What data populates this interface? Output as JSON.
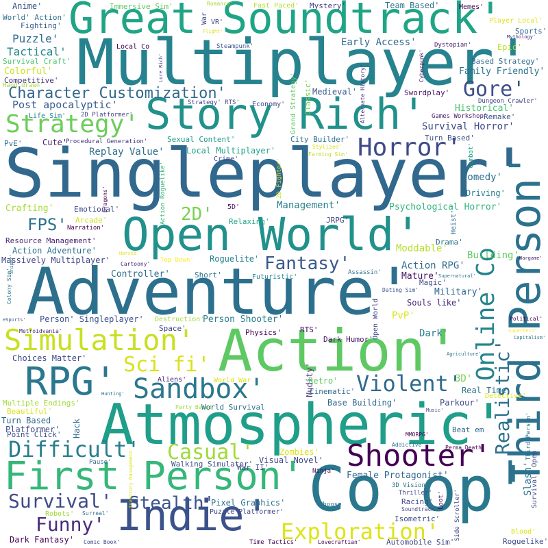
{
  "words": [
    {
      "text": "Singleplayer'",
      "color": "#31688e"
    },
    {
      "text": "Multiplayer'",
      "color": "#26828e"
    },
    {
      "text": "Adventure'",
      "color": "#2d708e"
    },
    {
      "text": "Action'",
      "color": "#5ec962"
    },
    {
      "text": "Atmospheric'",
      "color": "#1f9e89"
    },
    {
      "text": "Great Soundtrack'",
      "color": "#20a486"
    },
    {
      "text": "Co op'",
      "color": "#2a788e"
    },
    {
      "text": "Open World'",
      "color": "#21918c"
    },
    {
      "text": "Story Rich'",
      "color": "#21918c"
    },
    {
      "text": "First Person'",
      "color": "#35b779"
    },
    {
      "text": "Third Person'",
      "color": "#2c728e"
    },
    {
      "text": "Indie'",
      "color": "#3b528b"
    },
    {
      "text": "RPG'",
      "color": "#2a788e"
    },
    {
      "text": "Simulation'",
      "color": "#c8e020"
    },
    {
      "text": "Shooter'",
      "color": "#440154"
    },
    {
      "text": "Sandbox'",
      "color": "#2a788e"
    },
    {
      "text": "Strategy'",
      "color": "#6ccd5a"
    },
    {
      "text": "Horror'",
      "color": "#3e4989"
    },
    {
      "text": "Exploration'",
      "color": "#dde318"
    },
    {
      "text": "Difficult'",
      "color": "#287d8e"
    },
    {
      "text": "Online Co",
      "color": "#25848e"
    },
    {
      "text": "Violent'",
      "color": "#306a8e"
    },
    {
      "text": "Sci fi'",
      "color": "#d8e219"
    },
    {
      "text": "Casual'",
      "color": "#a0da39"
    },
    {
      "text": "Survival'",
      "color": "#3e4a89"
    },
    {
      "text": "Funny'",
      "color": "#472d7b"
    },
    {
      "text": "Stealth'",
      "color": "#3a548c"
    },
    {
      "text": "Fantasy'",
      "color": "#38598c"
    },
    {
      "text": "Gore'",
      "color": "#3d4e8a"
    },
    {
      "text": "Character Customization'",
      "color": "#31688e"
    },
    {
      "text": "FPS'",
      "color": "#2c728e"
    },
    {
      "text": "2D'",
      "color": "#7ad151"
    },
    {
      "text": "Realistic'",
      "color": "#2c718e"
    },
    {
      "text": "Anime'",
      "color": "#3b528b"
    },
    {
      "text": "Immersive Sim'",
      "color": "#5ec962"
    },
    {
      "text": "Romance'",
      "color": "#a5db36"
    },
    {
      "text": "Fast Paced'",
      "color": "#b8de29"
    },
    {
      "text": "Mystery'",
      "color": "#443983"
    },
    {
      "text": "Team Based'",
      "color": "#2c728e"
    },
    {
      "text": "Memes'",
      "color": "#440154"
    },
    {
      "text": "World' Action'",
      "color": "#2c728e"
    },
    {
      "text": "Fighting'",
      "color": "#375b8d"
    },
    {
      "text": "Puzzle'",
      "color": "#2f6c8e"
    },
    {
      "text": "Tactical'",
      "color": "#24868e"
    },
    {
      "text": "Survival Craft'",
      "color": "#4ac16d"
    },
    {
      "text": "Colorful'",
      "color": "#d0e11c"
    },
    {
      "text": "Competitive'",
      "color": "#46327e"
    },
    {
      "text": "Hand drawn'",
      "color": "#a8db34"
    },
    {
      "text": "Post apocalyptic'",
      "color": "#375b8d"
    },
    {
      "text": "Life Sim'",
      "color": "#25838e"
    },
    {
      "text": "2D Platformer'",
      "color": "#3f4889"
    },
    {
      "text": "PvE'",
      "color": "#2e6e8e"
    },
    {
      "text": "Cute'",
      "color": "#482374"
    },
    {
      "text": "Procedural Generation'",
      "color": "#453581"
    },
    {
      "text": "Crafting'",
      "color": "#a8db34"
    },
    {
      "text": "Emotional'",
      "color": "#3e4c8a"
    },
    {
      "text": "Arcade'",
      "color": "#cae11f"
    },
    {
      "text": "Narration'",
      "color": "#440154"
    },
    {
      "text": "Resource Management'",
      "color": "#482677"
    },
    {
      "text": "Action Adventure'",
      "color": "#2c728e"
    },
    {
      "text": "Massively Multiplayer'",
      "color": "#404688"
    },
    {
      "text": "Controller'",
      "color": "#2e6e8e"
    },
    {
      "text": "Short'",
      "color": "#2d718e"
    },
    {
      "text": "Roguelite'",
      "color": "#26818e"
    },
    {
      "text": "Top Down'",
      "color": "#fde725"
    },
    {
      "text": "Cartoony'",
      "color": "#472c7a"
    },
    {
      "text": "Futuristic'",
      "color": "#25848e"
    },
    {
      "text": "Replay Value'",
      "color": "#2e6e8e"
    },
    {
      "text": "Sexual Content'",
      "color": "#1f9a8a"
    },
    {
      "text": "Local Multiplayer'",
      "color": "#20a386"
    },
    {
      "text": "Crime'",
      "color": "#3e4989"
    },
    {
      "text": "City Builder'",
      "color": "#2e6d8e"
    },
    {
      "text": "Farming Sim'",
      "color": "#c0df25"
    },
    {
      "text": "Stylized'",
      "color": "#dde318"
    },
    {
      "text": "Relaxing'",
      "color": "#22a785"
    },
    {
      "text": "5D'",
      "color": "#481467"
    },
    {
      "text": "JRPG'",
      "color": "#424086"
    },
    {
      "text": "Management'",
      "color": "#277f8e"
    },
    {
      "text": "Psychological Horror'",
      "color": "#2fb47c"
    },
    {
      "text": "Driving'",
      "color": "#277f8e"
    },
    {
      "text": "Comedy'",
      "color": "#2e6e8e"
    },
    {
      "text": "Turn Based'",
      "color": "#3b528b"
    },
    {
      "text": "Dungeon Crawler'",
      "color": "#404688"
    },
    {
      "text": "Remake'",
      "color": "#3b528b"
    },
    {
      "text": "Survival Horror'",
      "color": "#3e4989"
    },
    {
      "text": "Games Workshop'",
      "color": "#481769"
    },
    {
      "text": "Historical'",
      "color": "#4ac16d"
    },
    {
      "text": "Family Friendly'",
      "color": "#2c728e"
    },
    {
      "text": "Based Strategy'",
      "color": "#2f6b8e"
    },
    {
      "text": "Epic'",
      "color": "#b5de2b"
    },
    {
      "text": "Dystopian'",
      "color": "#481b6d"
    },
    {
      "text": "Sports'",
      "color": "#31688e"
    },
    {
      "text": "Player Local'",
      "color": "#dde318"
    },
    {
      "text": "Mythology'",
      "color": "#482878"
    },
    {
      "text": "Swordplay'",
      "color": "#481467"
    },
    {
      "text": "Medieval'",
      "color": "#38598c"
    },
    {
      "text": "Early Access'",
      "color": "#31688e"
    },
    {
      "text": "Local Co",
      "color": "#440154"
    },
    {
      "text": "Steampunk'",
      "color": "#3b528b"
    },
    {
      "text": "Strategy' RTS'",
      "color": "#3e4989"
    },
    {
      "text": "Economy'",
      "color": "#3e4989"
    },
    {
      "text": "VR'",
      "color": "#3e4989"
    },
    {
      "text": "War",
      "color": "#3e4989"
    },
    {
      "text": "Flight'",
      "color": "#dde318"
    },
    {
      "text": "Lore Rich'",
      "color": "#443983"
    },
    {
      "text": "Grand Strategy'",
      "color": "#5ec962"
    },
    {
      "text": "Classic'",
      "color": "#7ad151"
    },
    {
      "text": "Alternate History'",
      "color": "#472d7b"
    },
    {
      "text": "Cyberpunk'",
      "color": "#471164"
    },
    {
      "text": "2D Fighter'",
      "color": "#c8e020"
    },
    {
      "text": "Dragons'",
      "color": "#440154"
    },
    {
      "text": "Action Roguelike'",
      "color": "#35b779"
    },
    {
      "text": "Combat'",
      "color": "#20a486"
    },
    {
      "text": "Heist'",
      "color": "#2e6e8e"
    },
    {
      "text": "Drama'",
      "color": "#2c728e"
    },
    {
      "text": "Horses'",
      "color": "#dde318"
    },
    {
      "text": "Building'",
      "color": "#5ec962"
    },
    {
      "text": "Action RPG'",
      "color": "#2f6b8e"
    },
    {
      "text": "Mature'",
      "color": "#481467"
    },
    {
      "text": "Magic'",
      "color": "#3e4989"
    },
    {
      "text": "Wargame'",
      "color": "#482374"
    },
    {
      "text": "Military'",
      "color": "#31688e"
    },
    {
      "text": "Moddable'",
      "color": "#b5de2b"
    },
    {
      "text": "Assassin'",
      "color": "#2c728e"
    },
    {
      "text": "Supernatural'",
      "color": "#2c728e"
    },
    {
      "text": "Dating Sim'",
      "color": "#3b528b"
    },
    {
      "text": "Open World",
      "color": "#3e4989"
    },
    {
      "text": "Souls like'",
      "color": "#482374"
    },
    {
      "text": "Dark'",
      "color": "#287d8e"
    },
    {
      "text": "PvP'",
      "color": "#dde318"
    },
    {
      "text": "Political'",
      "color": "#440154"
    },
    {
      "text": "Superhero'",
      "color": "#fde725"
    },
    {
      "text": "Capitalism'",
      "color": "#2c728e"
    },
    {
      "text": "Agriculture'",
      "color": "#2c728e"
    },
    {
      "text": "Person' Singleplayer'",
      "color": "#3b528b"
    },
    {
      "text": "Destruction'",
      "color": "#a0da39"
    },
    {
      "text": "Space'",
      "color": "#404688"
    },
    {
      "text": "Person Shooter'",
      "color": "#287d8e"
    },
    {
      "text": "Physics'",
      "color": "#440154"
    },
    {
      "text": "RTS'",
      "color": "#440154"
    },
    {
      "text": "Dark Humor'",
      "color": "#481467"
    },
    {
      "text": "Metroidvania'",
      "color": "#472d7b"
    },
    {
      "text": "Colony Sim'",
      "color": "#2c728e"
    },
    {
      "text": "Sniper'",
      "color": "#2c728e"
    },
    {
      "text": "eSports'",
      "color": "#3b528b"
    },
    {
      "text": "Choices Matter'",
      "color": "#3e4989"
    },
    {
      "text": "Aliens'",
      "color": "#482374"
    },
    {
      "text": "World War",
      "color": "#dde318"
    },
    {
      "text": "Nudity'",
      "color": "#472d7b"
    },
    {
      "text": "Retro'",
      "color": "#5ec962"
    },
    {
      "text": "Cinematic'",
      "color": "#31688e"
    },
    {
      "text": "3D'",
      "color": "#7ad151"
    },
    {
      "text": "Real Time",
      "color": "#2c728e"
    },
    {
      "text": "Detective'",
      "color": "#dde318"
    },
    {
      "text": "Multiple Endings'",
      "color": "#a0da39"
    },
    {
      "text": "Beautiful'",
      "color": "#dde318"
    },
    {
      "text": "Hunting'",
      "color": "#2c728e"
    },
    {
      "text": "Party Based",
      "color": "#a0da39"
    },
    {
      "text": "World Survival",
      "color": "#2c728e"
    },
    {
      "text": "Base Building'",
      "color": "#31688e"
    },
    {
      "text": "Parkour'",
      "color": "#3e4989"
    },
    {
      "text": "Music'",
      "color": "#3e4989"
    },
    {
      "text": "Turn Based",
      "color": "#31688e"
    },
    {
      "text": "Platformer'",
      "color": "#3e4989"
    },
    {
      "text": "Point Click'",
      "color": "#3b528b"
    },
    {
      "text": "Hack",
      "color": "#31688e"
    },
    {
      "text": "Slash'",
      "color": "#2c728e"
    },
    {
      "text": "Beat em",
      "color": "#31688e"
    },
    {
      "text": "MMORPG'",
      "color": "#440154"
    },
    {
      "text": "Addictive'",
      "color": "#2c728e"
    },
    {
      "text": "Perma Death'",
      "color": "#440154"
    },
    {
      "text": "Zombies'",
      "color": "#dde318"
    },
    {
      "text": "Inventory Management'",
      "color": "#dde318"
    },
    {
      "text": "Pause'",
      "color": "#31688e"
    },
    {
      "text": "Walking Simulator'",
      "color": "#3e4989"
    },
    {
      "text": "War II'",
      "color": "#3e4989"
    },
    {
      "text": "Visual Novel'",
      "color": "#3e4989"
    },
    {
      "text": "Female Protagonist'",
      "color": "#31688e"
    },
    {
      "text": "Ninja'",
      "color": "#440154"
    },
    {
      "text": "3D Vision'",
      "color": "#2c728e"
    },
    {
      "text": "Third Person'",
      "color": "#2c728e"
    },
    {
      "text": "Survival' Open",
      "color": "#3e4989"
    },
    {
      "text": "Robots'",
      "color": "#a0da39"
    },
    {
      "text": "Surreal'",
      "color": "#2c728e"
    },
    {
      "text": "Pixel Graphics'",
      "color": "#2c728e"
    },
    {
      "text": "Puzzle Platformer'",
      "color": "#3e4989"
    },
    {
      "text": "Choose",
      "color": "#2c728e"
    },
    {
      "text": "Thriller'",
      "color": "#3e4989"
    },
    {
      "text": "Racing'",
      "color": "#3e4989"
    },
    {
      "text": "Soundtrack'",
      "color": "#3e4989"
    },
    {
      "text": "Loot'",
      "color": "#440154"
    },
    {
      "text": "Isometric'",
      "color": "#3e4989"
    },
    {
      "text": "Side Scroller'",
      "color": "#3e4989"
    },
    {
      "text": "Blood'",
      "color": "#dde318"
    },
    {
      "text": "Roguelike'",
      "color": "#3e4989"
    },
    {
      "text": "Dark Fantasy'",
      "color": "#440154"
    },
    {
      "text": "Comic Book'",
      "color": "#3e4989"
    },
    {
      "text": "Time Tactics'",
      "color": "#440154"
    },
    {
      "text": "Lovecraftian'",
      "color": "#440154"
    },
    {
      "text": "Automobile Sim'",
      "color": "#3e4989"
    }
  ]
}
